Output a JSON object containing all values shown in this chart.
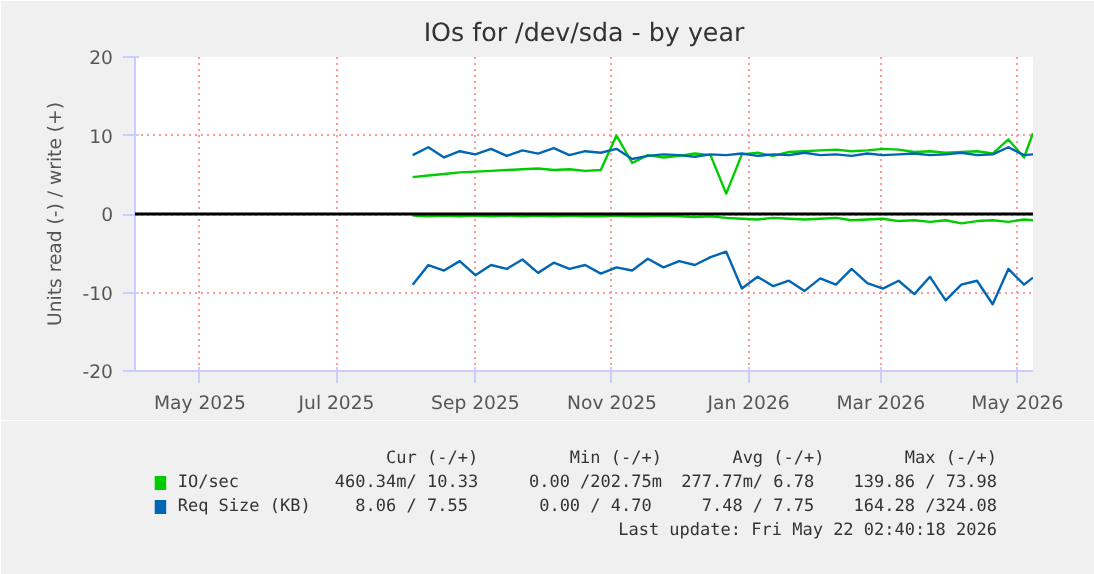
{
  "chart_data": {
    "type": "line",
    "title": "IOs for /dev/sda - by year",
    "ylabel": "Units read (-) / write (+)",
    "x": [
      "2025-08-18",
      "2025-08-25",
      "2025-09-01",
      "2025-09-08",
      "2025-09-15",
      "2025-09-22",
      "2025-09-29",
      "2025-10-06",
      "2025-10-13",
      "2025-10-20",
      "2025-10-27",
      "2025-11-03",
      "2025-11-10",
      "2025-11-17",
      "2025-11-24",
      "2025-12-01",
      "2025-12-08",
      "2025-12-15",
      "2025-12-22",
      "2025-12-29",
      "2026-01-05",
      "2026-01-12",
      "2026-01-19",
      "2026-01-26",
      "2026-02-02",
      "2026-02-09",
      "2026-02-16",
      "2026-02-23",
      "2026-03-02",
      "2026-03-09",
      "2026-03-16",
      "2026-03-23",
      "2026-03-30",
      "2026-04-06",
      "2026-04-13",
      "2026-04-20",
      "2026-04-27",
      "2026-05-04",
      "2026-05-11",
      "2026-05-18",
      "2026-05-22"
    ],
    "series": [
      {
        "name": "IO/sec",
        "color": "#00cc00",
        "values": [
          4.7,
          4.9,
          5.1,
          5.3,
          5.4,
          5.5,
          5.6,
          5.7,
          5.8,
          5.6,
          5.7,
          5.5,
          5.6,
          10.0,
          6.5,
          7.5,
          7.2,
          7.4,
          7.7,
          7.5,
          2.6,
          7.6,
          7.8,
          7.4,
          7.9,
          8.0,
          8.1,
          8.2,
          8.0,
          8.1,
          8.3,
          8.2,
          7.9,
          8.0,
          7.8,
          7.9,
          8.0,
          7.7,
          9.5,
          7.2,
          10.3
        ]
      },
      {
        "color": "#00cc00",
        "values": [
          -0.2,
          -0.3,
          -0.2,
          -0.3,
          -0.2,
          -0.3,
          -0.2,
          -0.3,
          -0.2,
          -0.3,
          -0.2,
          -0.3,
          -0.3,
          -0.2,
          -0.3,
          -0.3,
          -0.2,
          -0.3,
          -0.4,
          -0.3,
          -0.5,
          -0.6,
          -0.7,
          -0.5,
          -0.6,
          -0.7,
          -0.6,
          -0.5,
          -0.8,
          -0.7,
          -0.6,
          -0.9,
          -0.8,
          -1.0,
          -0.8,
          -1.2,
          -0.9,
          -0.8,
          -1.0,
          -0.7,
          -0.8
        ]
      },
      {
        "name": "Req Size (KB)",
        "color": "#0066b3",
        "values": [
          7.5,
          8.5,
          7.2,
          8.0,
          7.6,
          8.3,
          7.4,
          8.1,
          7.7,
          8.4,
          7.5,
          8.0,
          7.8,
          8.3,
          7.0,
          7.4,
          7.6,
          7.5,
          7.3,
          7.6,
          7.5,
          7.7,
          7.4,
          7.6,
          7.5,
          7.8,
          7.5,
          7.6,
          7.4,
          7.7,
          7.5,
          7.6,
          7.7,
          7.5,
          7.6,
          7.8,
          7.5,
          7.6,
          8.5,
          7.5,
          7.6
        ]
      },
      {
        "color": "#0066b3",
        "values": [
          -9.0,
          -6.5,
          -7.2,
          -6.0,
          -7.8,
          -6.5,
          -7.0,
          -5.8,
          -7.5,
          -6.2,
          -7.0,
          -6.5,
          -7.6,
          -6.8,
          -7.2,
          -5.7,
          -6.8,
          -6.0,
          -6.5,
          -5.5,
          -4.8,
          -9.5,
          -8.0,
          -9.2,
          -8.5,
          -9.8,
          -8.2,
          -9.0,
          -7.0,
          -8.8,
          -9.5,
          -8.5,
          -10.2,
          -8.0,
          -11.0,
          -9.0,
          -8.5,
          -11.5,
          -7.0,
          -9.0,
          -8.1
        ]
      }
    ],
    "xlim": [
      "2025-04-16",
      "2026-05-22"
    ],
    "xticks": [
      {
        "value": "2025-05-15",
        "label": "May 2025"
      },
      {
        "value": "2025-07-15",
        "label": "Jul 2025"
      },
      {
        "value": "2025-09-15",
        "label": "Sep 2025"
      },
      {
        "value": "2025-11-15",
        "label": "Nov 2025"
      },
      {
        "value": "2026-01-15",
        "label": "Jan 2026"
      },
      {
        "value": "2026-03-15",
        "label": "Mar 2026"
      },
      {
        "value": "2026-05-15",
        "label": "May 2026"
      }
    ],
    "ylim": [
      -20,
      20
    ],
    "yticks": [
      -20,
      -10,
      0,
      10,
      20
    ],
    "ref_lines": [
      {
        "axis": "y",
        "value": 0,
        "color": "#000000"
      }
    ],
    "grid": true,
    "legend": "bottom",
    "annotations": [
      "Cur (-/+)",
      "Min (-/+)",
      "Avg (-/+)",
      "Max (-/+)",
      "460.34m/ 10.33",
      "0.00 /202.75m",
      "277.77m/  6.78",
      "139.86 / 73.98",
      "8.06 /  7.55",
      "0.00 /  4.70",
      "7.48 /  7.75",
      "164.28 /324.08",
      "Last update: Fri May 22 02:40:18 2026"
    ]
  }
}
